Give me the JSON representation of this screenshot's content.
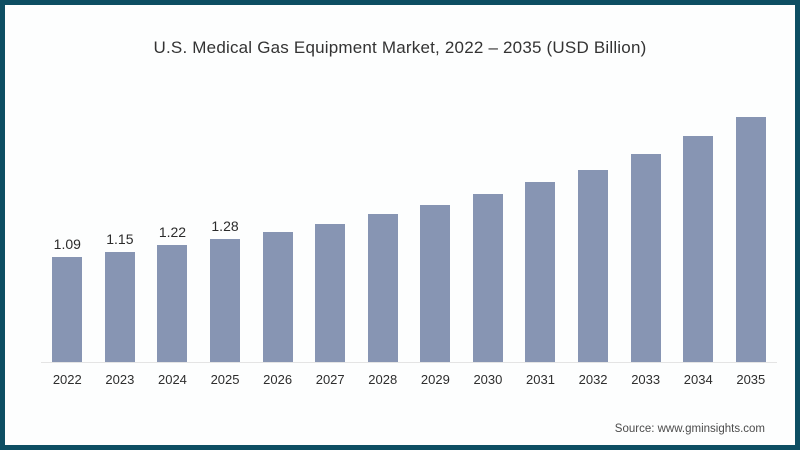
{
  "frame": {
    "border_color": "#0d4e63",
    "background": "#fdfefe"
  },
  "colors": {
    "bar": "#8795b3",
    "axis_line": "#e4e4e4",
    "title_text": "#333333",
    "tick_text": "#2e2e2e",
    "data_label_text": "#2b2b2b",
    "source_text": "#4c4c4c"
  },
  "footer": {
    "source": "Source: www.gminsights.com"
  },
  "chart_data": {
    "type": "bar",
    "title": "U.S. Medical Gas Equipment Market, 2022 – 2035 (USD Billion)",
    "categories": [
      "2022",
      "2023",
      "2024",
      "2025",
      "2026",
      "2027",
      "2028",
      "2029",
      "2030",
      "2031",
      "2032",
      "2033",
      "2034",
      "2035"
    ],
    "values": [
      1.09,
      1.15,
      1.22,
      1.28,
      1.35,
      1.44,
      1.54,
      1.64,
      1.75,
      1.87,
      2.0,
      2.17,
      2.35,
      2.55
    ],
    "data_labels": [
      "1.09",
      "1.15",
      "1.22",
      "1.28",
      "",
      "",
      "",
      "",
      "",
      "",
      "",
      "",
      "",
      ""
    ],
    "xlabel": "",
    "ylabel": "",
    "ylim": [
      0,
      2.8
    ],
    "grid": false,
    "legend": false,
    "bar_color": "#8795b3"
  }
}
